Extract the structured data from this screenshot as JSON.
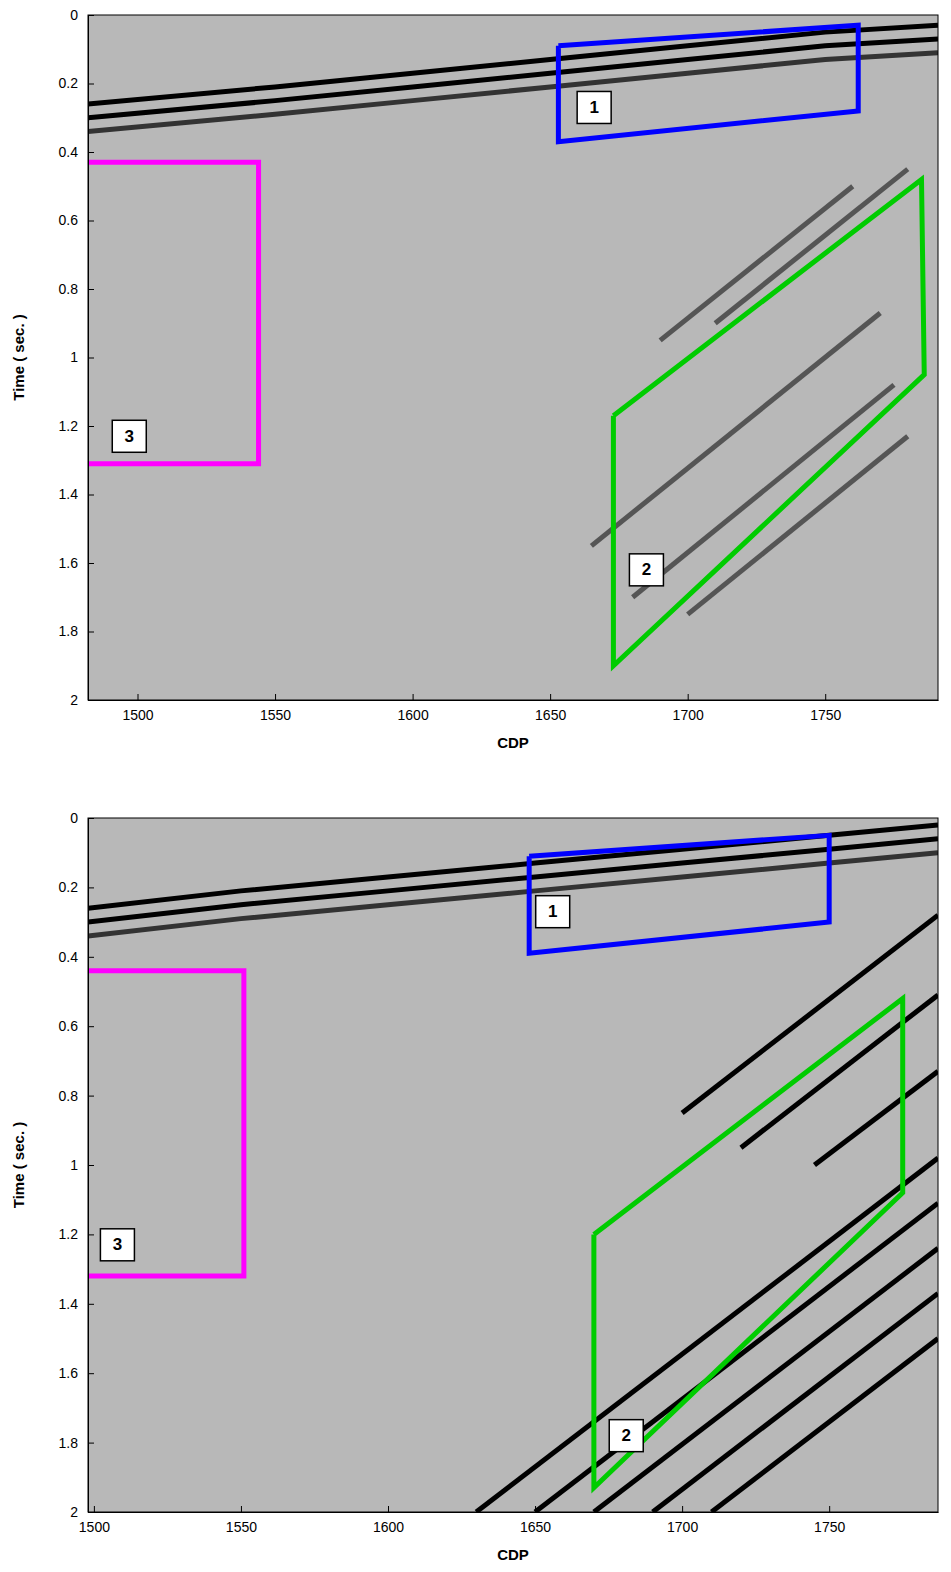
{
  "chart_data": [
    {
      "type": "line",
      "xlabel": "CDP",
      "ylabel": "Time ( sec. )",
      "xlim": [
        1482,
        1791
      ],
      "xticks": [
        1500,
        1550,
        1600,
        1650,
        1700,
        1750
      ],
      "ylim": [
        0,
        2
      ],
      "yticks": [
        0,
        0.2,
        0.4,
        0.6,
        0.8,
        1,
        1.2,
        1.4,
        1.6,
        1.8,
        2
      ],
      "series": [
        {
          "color": "#000000",
          "x": [
            1482,
            1550,
            1600,
            1650,
            1700,
            1750,
            1791
          ],
          "values": [
            0.26,
            0.21,
            0.17,
            0.13,
            0.09,
            0.05,
            0.03
          ]
        },
        {
          "color": "#000000",
          "x": [
            1482,
            1550,
            1600,
            1650,
            1700,
            1750,
            1791
          ],
          "values": [
            0.3,
            0.25,
            0.21,
            0.17,
            0.13,
            0.09,
            0.07
          ]
        },
        {
          "color": "#333333",
          "x": [
            1482,
            1550,
            1600,
            1650,
            1700,
            1750,
            1791
          ],
          "values": [
            0.34,
            0.29,
            0.25,
            0.21,
            0.17,
            0.13,
            0.11
          ]
        },
        {
          "color": "#555555",
          "x": [
            1665,
            1770
          ],
          "values": [
            1.55,
            0.87
          ]
        },
        {
          "color": "#555555",
          "x": [
            1680,
            1775
          ],
          "values": [
            1.7,
            1.08
          ]
        },
        {
          "color": "#555555",
          "x": [
            1700,
            1780
          ],
          "values": [
            1.75,
            1.23
          ]
        },
        {
          "color": "#555555",
          "x": [
            1690,
            1760
          ],
          "values": [
            0.95,
            0.5
          ]
        },
        {
          "color": "#555555",
          "x": [
            1710,
            1780
          ],
          "values": [
            0.9,
            0.45
          ]
        }
      ],
      "annotations": [
        {
          "label": "1",
          "color": "#0000ff",
          "x": [
            1653,
            1762,
            1762,
            1653,
            1653
          ],
          "y": [
            0.09,
            0.03,
            0.28,
            0.37,
            0.09
          ],
          "label_x": 1666,
          "label_y": 0.27
        },
        {
          "label": "2",
          "color": "#00cc00",
          "x": [
            1673,
            1785,
            1786,
            1673,
            1673
          ],
          "y": [
            1.17,
            0.48,
            1.05,
            1.9,
            1.17
          ],
          "label_x": 1685,
          "label_y": 1.62
        },
        {
          "label": "3",
          "color": "#ff00ff",
          "x": [
            1482,
            1544,
            1544,
            1482
          ],
          "y": [
            0.43,
            0.43,
            1.31,
            1.31
          ],
          "label_x": 1497,
          "label_y": 1.23
        }
      ]
    },
    {
      "type": "line",
      "xlabel": "CDP",
      "ylabel": "Time ( sec. )",
      "xlim": [
        1498,
        1787
      ],
      "xticks": [
        1500,
        1550,
        1600,
        1650,
        1700,
        1750
      ],
      "ylim": [
        0,
        2
      ],
      "yticks": [
        0,
        0.2,
        0.4,
        0.6,
        0.8,
        1,
        1.2,
        1.4,
        1.6,
        1.8,
        2
      ],
      "series": [
        {
          "color": "#000000",
          "x": [
            1498,
            1550,
            1600,
            1650,
            1700,
            1750,
            1787
          ],
          "values": [
            0.26,
            0.21,
            0.17,
            0.13,
            0.09,
            0.05,
            0.02
          ]
        },
        {
          "color": "#000000",
          "x": [
            1498,
            1550,
            1600,
            1650,
            1700,
            1750,
            1787
          ],
          "values": [
            0.3,
            0.25,
            0.21,
            0.17,
            0.13,
            0.09,
            0.06
          ]
        },
        {
          "color": "#333333",
          "x": [
            1498,
            1550,
            1600,
            1650,
            1700,
            1750,
            1787
          ],
          "values": [
            0.34,
            0.29,
            0.25,
            0.21,
            0.17,
            0.13,
            0.1
          ]
        },
        {
          "color": "#000000",
          "x": [
            1630,
            1787
          ],
          "values": [
            2.0,
            0.98
          ]
        },
        {
          "color": "#000000",
          "x": [
            1650,
            1787
          ],
          "values": [
            2.0,
            1.11
          ]
        },
        {
          "color": "#000000",
          "x": [
            1670,
            1787
          ],
          "values": [
            2.0,
            1.24
          ]
        },
        {
          "color": "#000000",
          "x": [
            1690,
            1787
          ],
          "values": [
            2.0,
            1.37
          ]
        },
        {
          "color": "#000000",
          "x": [
            1710,
            1787
          ],
          "values": [
            2.0,
            1.5
          ]
        },
        {
          "color": "#000000",
          "x": [
            1700,
            1787
          ],
          "values": [
            0.85,
            0.28
          ]
        },
        {
          "color": "#000000",
          "x": [
            1720,
            1787
          ],
          "values": [
            0.95,
            0.51
          ]
        },
        {
          "color": "#000000",
          "x": [
            1745,
            1787
          ],
          "values": [
            1.0,
            0.73
          ]
        }
      ],
      "annotations": [
        {
          "label": "1",
          "color": "#0000ff",
          "x": [
            1648,
            1750,
            1750,
            1648,
            1648
          ],
          "y": [
            0.11,
            0.05,
            0.3,
            0.39,
            0.11
          ],
          "label_x": 1656,
          "label_y": 0.27
        },
        {
          "label": "2",
          "color": "#00cc00",
          "x": [
            1670,
            1775,
            1775,
            1670,
            1670
          ],
          "y": [
            1.2,
            0.52,
            1.08,
            1.93,
            1.2
          ],
          "label_x": 1681,
          "label_y": 1.78
        },
        {
          "label": "3",
          "color": "#ff00ff",
          "x": [
            1498,
            1551,
            1551,
            1498
          ],
          "y": [
            0.44,
            0.44,
            1.32,
            1.32
          ],
          "label_x": 1508,
          "label_y": 1.23
        }
      ]
    }
  ]
}
